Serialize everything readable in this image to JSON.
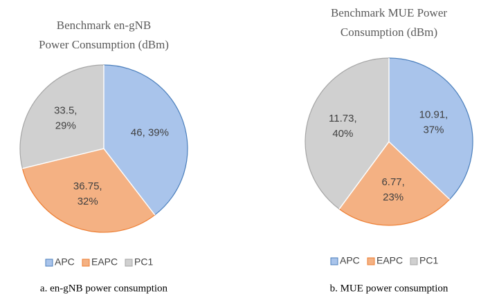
{
  "chart_data": [
    {
      "type": "pie",
      "title": [
        "Benchmark en-gNB",
        "Power Consumption (dBm)"
      ],
      "categories": [
        "APC",
        "EAPC",
        "PC1"
      ],
      "values": [
        46,
        36.75,
        33.5
      ],
      "value_labels": [
        "46, 39%",
        "36.75, 32%",
        "33.5, 29%"
      ],
      "colors": [
        "#a9c4eb",
        "#f4b183",
        "#d0d0d0"
      ],
      "legend": "bottom",
      "caption": "a. en-gNB power consumption"
    },
    {
      "type": "pie",
      "title": [
        "Benchmark MUE Power",
        "Consumption (dBm)"
      ],
      "categories": [
        "APC",
        "EAPC",
        "PC1"
      ],
      "values": [
        10.91,
        6.77,
        11.73
      ],
      "value_labels": [
        "10.91, 37%",
        "6.77, 23%",
        "11.73, 40%"
      ],
      "colors": [
        "#a9c4eb",
        "#f4b183",
        "#d0d0d0"
      ],
      "legend": "bottom",
      "caption": "b. MUE power consumption"
    }
  ]
}
